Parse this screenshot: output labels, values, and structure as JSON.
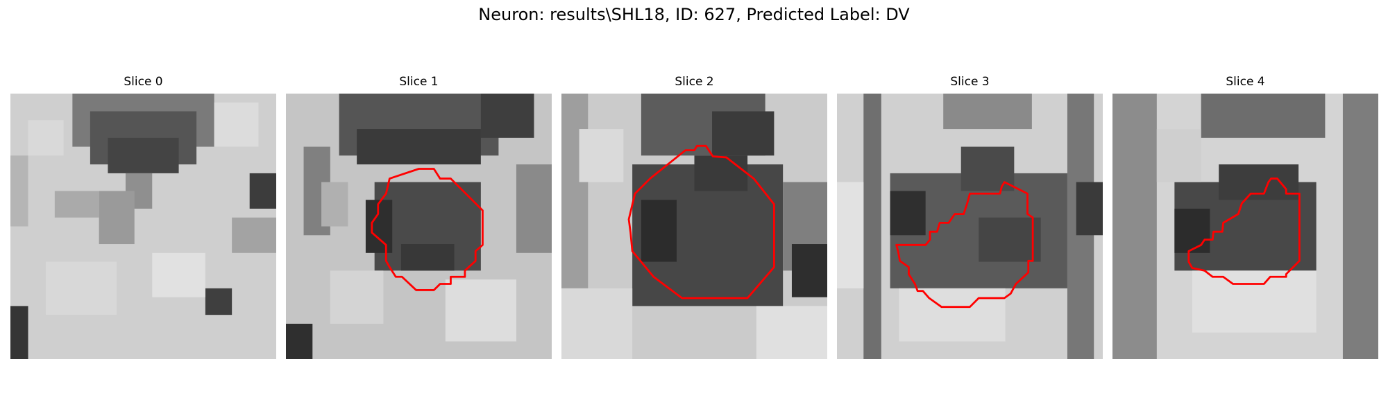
{
  "figure": {
    "title": "Neuron: results\\SHL18, ID: 627, Predicted Label: DV"
  },
  "panels": [
    {
      "title": "Slice 0",
      "has_contour": false
    },
    {
      "title": "Slice 1",
      "has_contour": true
    },
    {
      "title": "Slice 2",
      "has_contour": true
    },
    {
      "title": "Slice 3",
      "has_contour": true
    },
    {
      "title": "Slice 4",
      "has_contour": true
    }
  ],
  "colors": {
    "contour": "#ff0000",
    "background": "#ffffff"
  },
  "colormap": "grayscale"
}
